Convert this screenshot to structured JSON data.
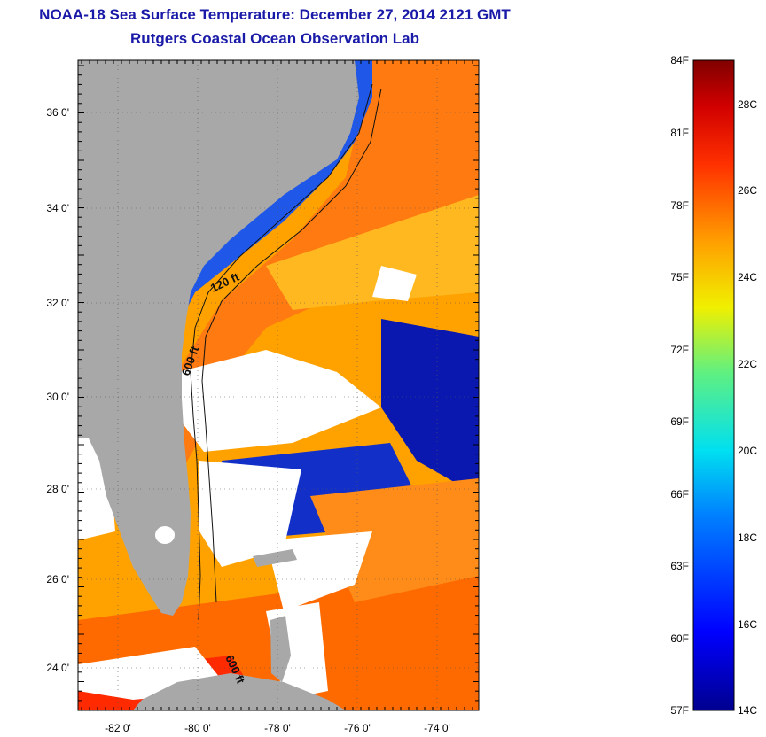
{
  "title": "NOAA-18 Sea Surface Temperature:  December 27, 2014 2121 GMT",
  "subtitle": "Rutgers Coastal Ocean Observation Lab",
  "lat_labels": [
    "36 0'",
    "34 0'",
    "32 0'",
    "30 0'",
    "28 0'",
    "26 0'",
    "24 0'"
  ],
  "lon_labels": [
    "-82 0'",
    "-80 0'",
    "-78 0'",
    "-76 0'",
    "-74 0'"
  ],
  "contour_labels": [
    "120 ft",
    "600 ft",
    "600 ft"
  ],
  "colorbar": {
    "fahrenheit": [
      "84F",
      "81F",
      "78F",
      "75F",
      "72F",
      "69F",
      "66F",
      "63F",
      "60F",
      "57F"
    ],
    "celsius": [
      "28C",
      "26C",
      "24C",
      "22C",
      "20C",
      "18C",
      "16C",
      "14C"
    ]
  },
  "colors": {
    "title": "#1a1aa8",
    "land": "#a8a8a8",
    "cloud": "#ffffff"
  }
}
